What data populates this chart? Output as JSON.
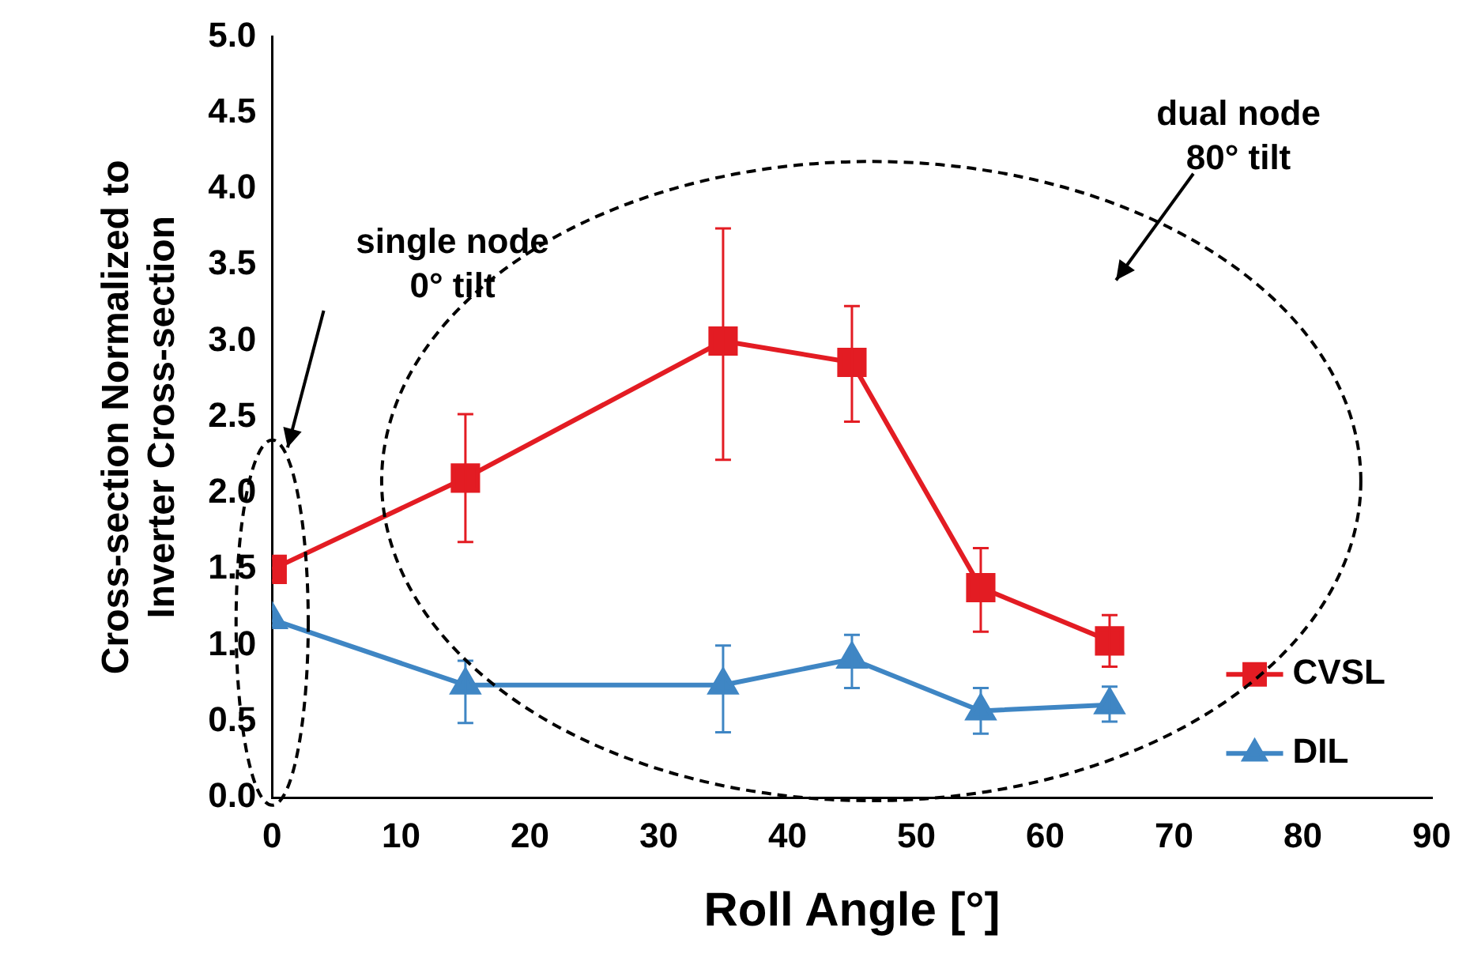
{
  "chart_data": {
    "type": "line",
    "xlabel": "Roll Angle [°]",
    "ylabel": "Cross-section Normalized to\nInverter Cross-section",
    "x": [
      0,
      15,
      35,
      45,
      55,
      65
    ],
    "series": [
      {
        "name": "CVSL",
        "color": "#e31c23",
        "marker": "square",
        "values": [
          1.5,
          2.1,
          3.0,
          2.86,
          1.38,
          1.03
        ],
        "errors": [
          null,
          [
            1.68,
            2.52
          ],
          [
            2.22,
            3.74
          ],
          [
            2.47,
            3.23
          ],
          [
            1.09,
            1.64
          ],
          [
            0.86,
            1.2
          ]
        ]
      },
      {
        "name": "DIL",
        "color": "#3f86c4",
        "marker": "triangle",
        "values": [
          1.17,
          0.74,
          0.74,
          0.91,
          0.57,
          0.61
        ],
        "errors": [
          null,
          [
            0.49,
            0.9
          ],
          [
            0.43,
            1.0
          ],
          [
            0.72,
            1.07
          ],
          [
            0.42,
            0.72
          ],
          [
            0.5,
            0.73
          ]
        ]
      }
    ],
    "xlim": [
      0,
      90
    ],
    "xticks": [
      0,
      10,
      20,
      30,
      40,
      50,
      60,
      70,
      80,
      90
    ],
    "ylim": [
      0,
      5
    ],
    "yticks": [
      {
        "value": 0,
        "label": "0.0"
      },
      {
        "value": 0.5,
        "label": "0.5"
      },
      {
        "value": 1,
        "label": "1.0"
      },
      {
        "value": 1.5,
        "label": "1.5"
      },
      {
        "value": 2,
        "label": "2.0"
      },
      {
        "value": 2.5,
        "label": "2.5"
      },
      {
        "value": 3,
        "label": "3.0"
      },
      {
        "value": 3.5,
        "label": "3.5"
      },
      {
        "value": 4,
        "label": "4.0"
      },
      {
        "value": 4.5,
        "label": "4.5"
      },
      {
        "value": 5,
        "label": "5.0"
      }
    ],
    "annotations": [
      "single node\n0° tilt",
      "dual node\n80° tilt"
    ],
    "grid": false,
    "legend": "bottom right"
  }
}
